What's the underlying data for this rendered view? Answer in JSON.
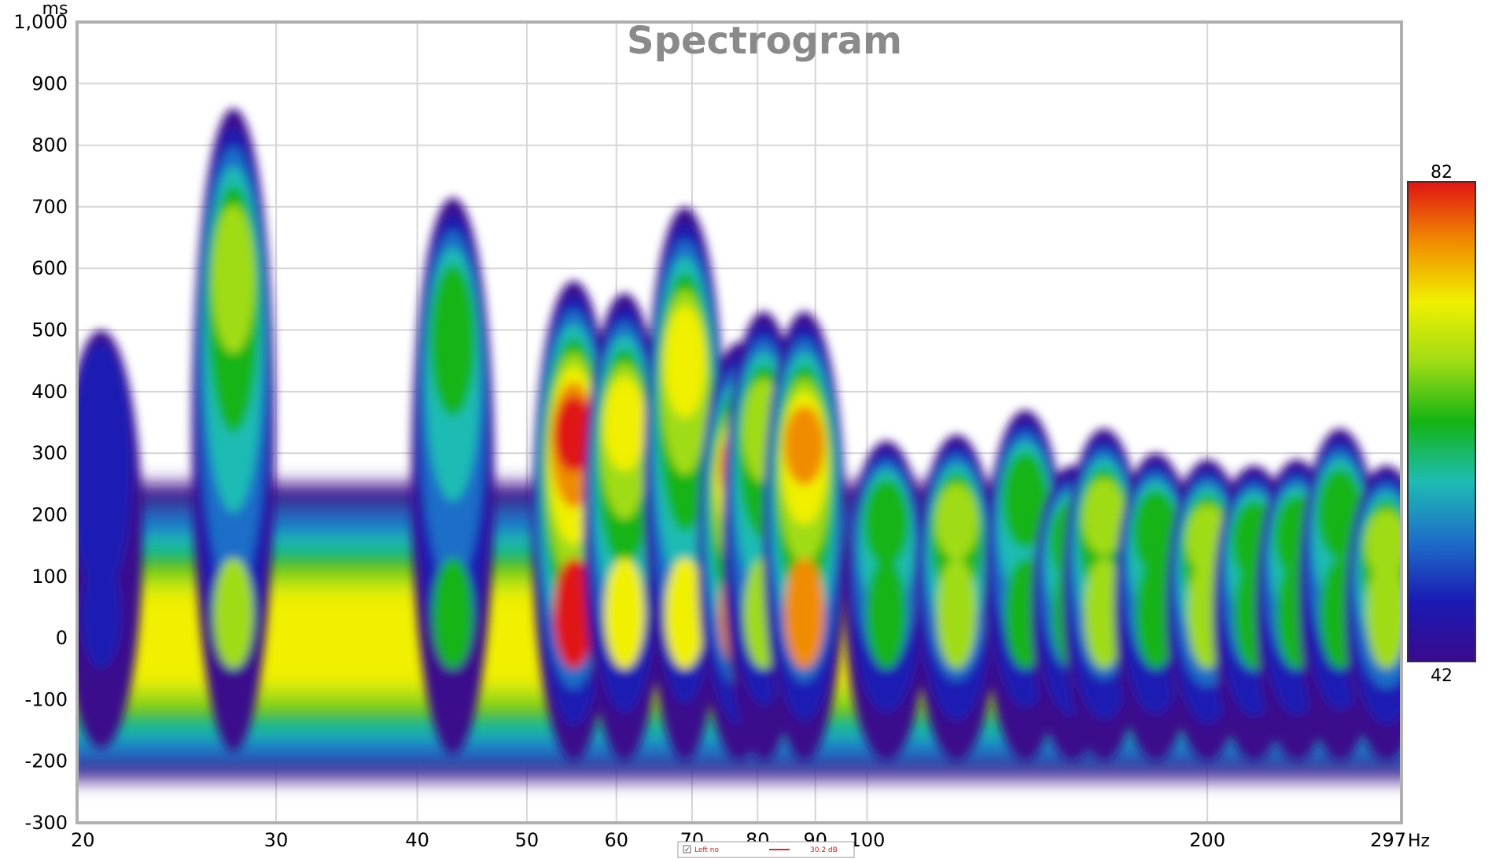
{
  "chart_data": {
    "type": "heatmap",
    "title": "Spectrogram",
    "x_unit": "Hz",
    "y_unit": "ms",
    "x_scale": "log",
    "x_range": [
      20,
      297
    ],
    "y_range": [
      -300,
      1000
    ],
    "x_ticks": [
      {
        "value": 20,
        "label": "20"
      },
      {
        "value": 30,
        "label": "30"
      },
      {
        "value": 40,
        "label": "40"
      },
      {
        "value": 50,
        "label": "50"
      },
      {
        "value": 60,
        "label": "60"
      },
      {
        "value": 70,
        "label": "70"
      },
      {
        "value": 80,
        "label": "80"
      },
      {
        "value": 90,
        "label": "90"
      },
      {
        "value": 100,
        "label": "100"
      },
      {
        "value": 200,
        "label": "200"
      },
      {
        "value": 297,
        "label": "297"
      }
    ],
    "y_ticks": [
      {
        "value": 1000,
        "label": "1,000"
      },
      {
        "value": 900,
        "label": "900"
      },
      {
        "value": 800,
        "label": "800"
      },
      {
        "value": 700,
        "label": "700"
      },
      {
        "value": 600,
        "label": "600"
      },
      {
        "value": 500,
        "label": "500"
      },
      {
        "value": 400,
        "label": "400"
      },
      {
        "value": 300,
        "label": "300"
      },
      {
        "value": 200,
        "label": "200"
      },
      {
        "value": 100,
        "label": "100"
      },
      {
        "value": 0,
        "label": "0"
      },
      {
        "value": -100,
        "label": "-100"
      },
      {
        "value": -200,
        "label": "-200"
      },
      {
        "value": -300,
        "label": "-300"
      }
    ],
    "grid": true,
    "color_scale": {
      "min": 42,
      "max": 82,
      "min_label": "42",
      "max_label": "82",
      "colors": [
        "#3a0a8c",
        "#1a1ab4",
        "#1e6ec8",
        "#1ebcb4",
        "#14b414",
        "#a0dc14",
        "#f0f000",
        "#f08c00",
        "#e01414"
      ],
      "placement": "right"
    },
    "legend": {
      "placement": "bottom",
      "checked": true,
      "series_name": "Left no",
      "value": "30.2 dB",
      "color": "#c83232"
    },
    "peaks": [
      {
        "freq": 21,
        "level": 45,
        "start_ms": -180,
        "end_ms": 500
      },
      {
        "freq": 27.5,
        "level": 66,
        "start_ms": -185,
        "end_ms": 860
      },
      {
        "freq": 43,
        "level": 64,
        "start_ms": -190,
        "end_ms": 715
      },
      {
        "freq": 55,
        "level": 80,
        "start_ms": -200,
        "end_ms": 580
      },
      {
        "freq": 61,
        "level": 74,
        "start_ms": -200,
        "end_ms": 560
      },
      {
        "freq": 69,
        "level": 70,
        "start_ms": -200,
        "end_ms": 700
      },
      {
        "freq": 77,
        "level": 76,
        "start_ms": -200,
        "end_ms": 480
      },
      {
        "freq": 81,
        "level": 68,
        "start_ms": -200,
        "end_ms": 530
      },
      {
        "freq": 88,
        "level": 78,
        "start_ms": -200,
        "end_ms": 530
      },
      {
        "freq": 104,
        "level": 64,
        "start_ms": -200,
        "end_ms": 320
      },
      {
        "freq": 120,
        "level": 68,
        "start_ms": -200,
        "end_ms": 330
      },
      {
        "freq": 138,
        "level": 64,
        "start_ms": -200,
        "end_ms": 370
      },
      {
        "freq": 152,
        "level": 62,
        "start_ms": -200,
        "end_ms": 280
      },
      {
        "freq": 162,
        "level": 66,
        "start_ms": -200,
        "end_ms": 340
      },
      {
        "freq": 180,
        "level": 62,
        "start_ms": -200,
        "end_ms": 300
      },
      {
        "freq": 200,
        "level": 66,
        "start_ms": -200,
        "end_ms": 290
      },
      {
        "freq": 220,
        "level": 62,
        "start_ms": -200,
        "end_ms": 280
      },
      {
        "freq": 240,
        "level": 62,
        "start_ms": -200,
        "end_ms": 290
      },
      {
        "freq": 262,
        "level": 64,
        "start_ms": -200,
        "end_ms": 340
      },
      {
        "freq": 288,
        "level": 66,
        "start_ms": -200,
        "end_ms": 280
      }
    ]
  }
}
